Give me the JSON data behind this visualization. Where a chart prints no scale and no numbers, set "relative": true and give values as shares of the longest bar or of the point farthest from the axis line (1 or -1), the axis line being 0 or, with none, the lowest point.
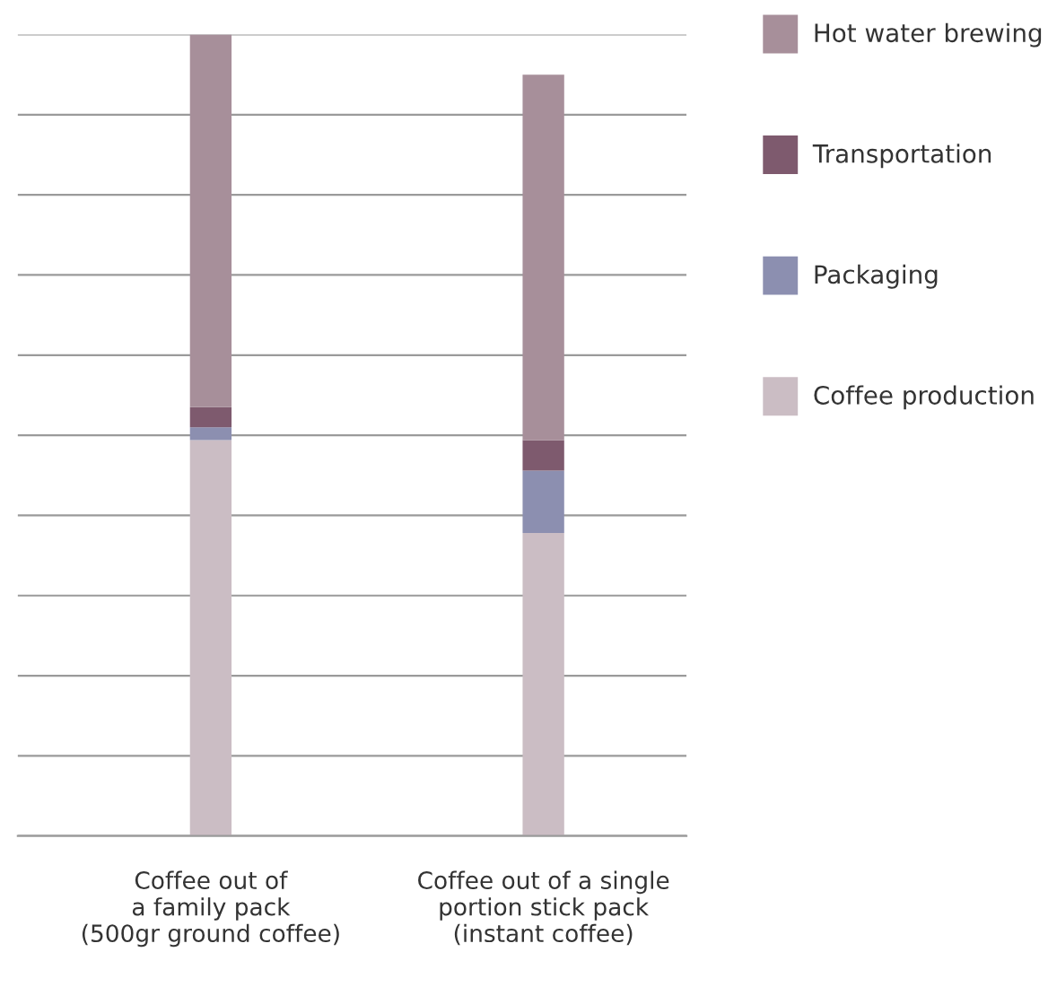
{
  "chart_data": {
    "type": "bar",
    "stacked": true,
    "relative": true,
    "grid": "y",
    "legend": "right",
    "categories": [
      "Coffee out of\na family pack\n(500gr ground coffee)",
      "Coffee out of a single\nportion stick pack\n(instant coffee)"
    ],
    "series": [
      {
        "name": "Coffee production",
        "color": "#cbbdc4",
        "values": [
          0.494,
          0.378
        ]
      },
      {
        "name": "Packaging",
        "color": "#8c8fb0",
        "values": [
          0.016,
          0.078
        ]
      },
      {
        "name": "Transportation",
        "color": "#7e5a6e",
        "values": [
          0.025,
          0.038
        ]
      },
      {
        "name": "Hot water brewing",
        "color": "#a78f9a",
        "values": [
          0.465,
          0.456
        ]
      }
    ]
  }
}
